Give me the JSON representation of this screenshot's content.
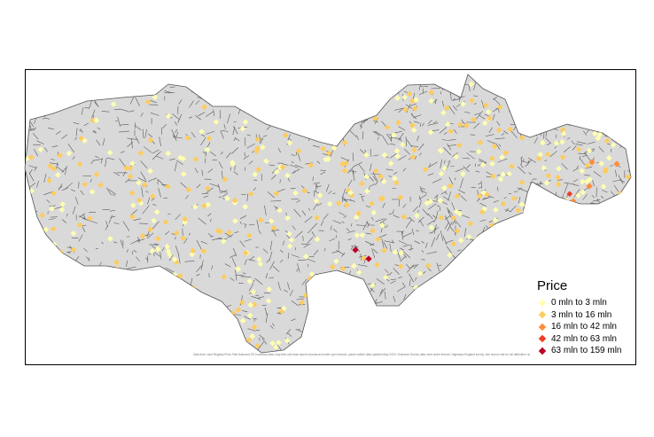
{
  "legend": {
    "title": "Price",
    "items": [
      {
        "label": "0 mln to 3 mln",
        "color": "#ffffb2"
      },
      {
        "label": "3 mln to 16 mln",
        "color": "#fecc5c"
      },
      {
        "label": "16 mln to 42 mln",
        "color": "#fd8d3c"
      },
      {
        "label": "42 mln to 63 mln",
        "color": "#f03b20"
      },
      {
        "label": "63 mln to 159 mln",
        "color": "#bd0026"
      }
    ]
  },
  "attribution": "Data from Land Registry Price Paid Data and OS boundary data; map tiles and base layers reproduced under open licence; parcel outline data updated May 2019; Ordnance Survey data used under licence; Highways England survey; see source site for full attribution notice 2019-05-22",
  "colors": {
    "boundary_fill": "#d9d9d9",
    "street_lines": "#5a5a5a",
    "frame": "#000000"
  }
}
